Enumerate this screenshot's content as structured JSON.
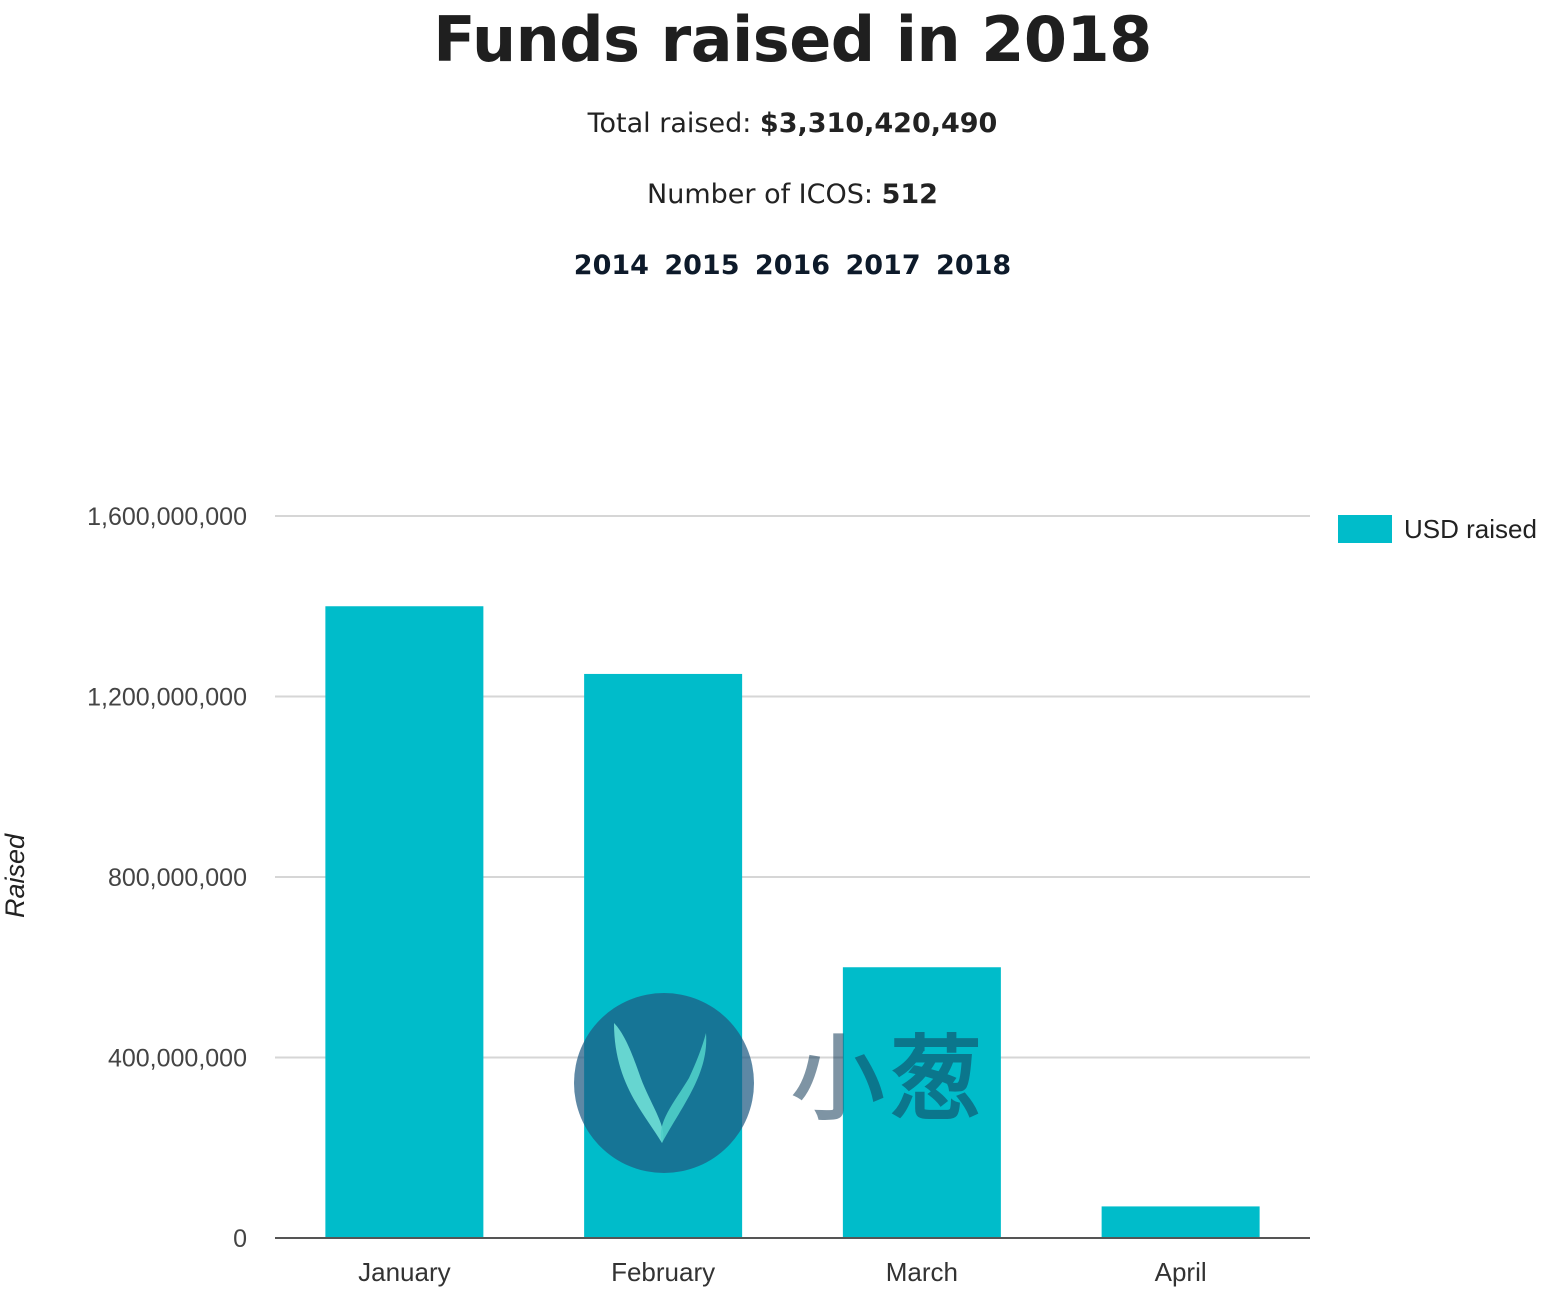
{
  "header": {
    "title": "Funds raised in 2018",
    "total_label": "Total raised:",
    "total_value": "$3,310,420,490",
    "count_label": "Number of ICOS:",
    "count_value": "512",
    "years": [
      "2014",
      "2015",
      "2016",
      "2017",
      "2018"
    ]
  },
  "colors": {
    "bar": "#00bcca",
    "grid": "#d6d6d6",
    "axis": "#555555"
  },
  "watermark": {
    "text": "小葱",
    "icon": "sprout-logo-icon"
  },
  "chart_data": {
    "type": "bar",
    "categories": [
      "January",
      "February",
      "March",
      "April"
    ],
    "series": [
      {
        "name": "USD raised",
        "values": [
          1400000000,
          1250000000,
          600000000,
          70000000
        ]
      }
    ],
    "xlabel": "",
    "ylabel": "Raised",
    "ylim": [
      0,
      1600000000
    ],
    "yticks": [
      0,
      400000000,
      800000000,
      1200000000,
      1600000000
    ],
    "ytick_labels": [
      "0",
      "400,000,000",
      "800,000,000",
      "1,200,000,000",
      "1,600,000,000"
    ],
    "grid": true,
    "legend_position": "right"
  }
}
